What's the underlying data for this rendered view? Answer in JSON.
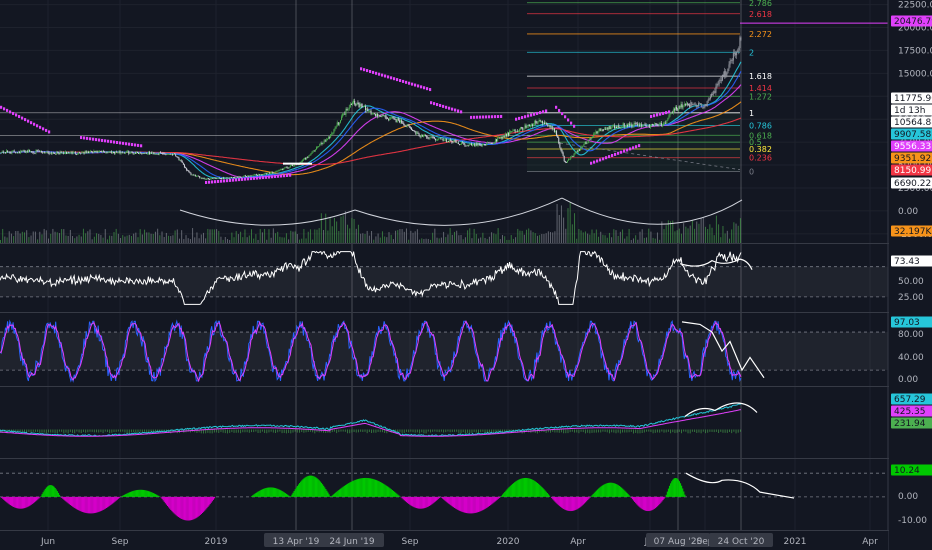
{
  "chart_data": {
    "type": "line",
    "symbol_context": "candlestick chart with indicators",
    "x_axis": {
      "labels": [
        "Jun",
        "Sep",
        "2019",
        "13 Apr '19",
        "24 Jun '19",
        "Sep",
        "2020",
        "Apr",
        "Jul",
        "07 Aug '20",
        "Sep",
        "24 Oct '20",
        "2021",
        "Apr"
      ],
      "highlighted": [
        "13 Apr '19",
        "24 Jun '19",
        "07 Aug '20",
        "24 Oct '20"
      ]
    },
    "main_pane": {
      "y_ticks": [
        22500,
        20000,
        17500,
        15000,
        12500,
        10000,
        7500,
        5000,
        2500,
        0,
        -2500
      ],
      "y_tick_labels": [
        "22500.00",
        "20000.00",
        "17500.00",
        "15000.00",
        "12500.00",
        "10000.00",
        "7500.00",
        "5000.00",
        "2500.00",
        "0.00",
        "-2500.00"
      ],
      "ylim": [
        -3500,
        23000
      ],
      "price_tags": [
        {
          "label": "20476.79",
          "value": 20476.79,
          "color": "#e040fb",
          "text_color": "#131722"
        },
        {
          "label": "11775.96",
          "value": 11775.96,
          "color": "#ffffff",
          "text_color": "#131722"
        },
        {
          "label": "1d 13h",
          "value": 11200,
          "color": "#ffffff",
          "text_color": "#131722"
        },
        {
          "label": "10564.88",
          "value": 10564.88,
          "color": "#ffffff",
          "text_color": "#131722"
        },
        {
          "label": "9907.58",
          "value": 9907.58,
          "color": "#26c6da",
          "text_color": "#131722"
        },
        {
          "label": "9556.33",
          "value": 9556.33,
          "color": "#e040fb",
          "text_color": "#ffffff"
        },
        {
          "label": "9351.92",
          "value": 9351.92,
          "color": "#f7931a",
          "text_color": "#131722"
        },
        {
          "label": "8150.99",
          "value": 8150.99,
          "color": "#f23645",
          "text_color": "#ffffff"
        },
        {
          "label": "6690.22",
          "value": 6690.22,
          "color": "#ffffff",
          "text_color": "#131722"
        },
        {
          "label": "32.197K",
          "value": -2500,
          "color": "#f7931a",
          "text_color": "#131722"
        }
      ],
      "fib_levels": [
        {
          "label": "2.786",
          "value": 22700,
          "color": "#4caf50"
        },
        {
          "label": "2.618",
          "value": 21500,
          "color": "#f23645"
        },
        {
          "label": "2.272",
          "value": 19300,
          "color": "#f7931a"
        },
        {
          "label": "2",
          "value": 17300,
          "color": "#26c6da"
        },
        {
          "label": "1.618",
          "value": 14700,
          "color": "#ffffff"
        },
        {
          "label": "1.414",
          "value": 13400,
          "color": "#f23645"
        },
        {
          "label": "1.272",
          "value": 12500,
          "color": "#4caf50"
        },
        {
          "label": "1",
          "value": 10700,
          "color": "#ffffff"
        },
        {
          "label": "0.786",
          "value": 9300,
          "color": "#26c6da"
        },
        {
          "label": "0.618",
          "value": 8250,
          "color": "#4caf50"
        },
        {
          "label": "0.5",
          "value": 7500,
          "color": "#4caf50"
        },
        {
          "label": "0.382",
          "value": 6750,
          "color": "#ffeb3b"
        },
        {
          "label": "0.236",
          "value": 5800,
          "color": "#f23645"
        },
        {
          "label": "0",
          "value": 4300,
          "color": "#787b86"
        }
      ]
    },
    "rsi_pane": {
      "y_tick_labels": [
        "50.00",
        "25.00"
      ],
      "last_value_label": "73.43",
      "last_value": 73.43,
      "bands": [
        70,
        30
      ],
      "ylim": [
        10,
        100
      ]
    },
    "stoch_pane": {
      "y_tick_labels": [
        "80.00",
        "40.00",
        "0.00"
      ],
      "last_value_label": "97.03",
      "last_value": 97.03,
      "bands": [
        80,
        20
      ],
      "ylim": [
        -5,
        110
      ]
    },
    "macd_pane": {
      "price_tags": [
        {
          "label": "657.29",
          "value": 657.29,
          "color": "#26c6da",
          "text_color": "#131722"
        },
        {
          "label": "425.35",
          "value": 425.35,
          "color": "#e040fb",
          "text_color": "#131722"
        },
        {
          "label": "231.94",
          "value": 231.94,
          "color": "#4caf50",
          "text_color": "#131722"
        }
      ]
    },
    "momentum_pane": {
      "y_tick_labels": [
        "0.00",
        "-10.00"
      ],
      "last_value_label": "10.24",
      "last_value": 10.24,
      "ylim": [
        -14,
        16
      ]
    }
  }
}
